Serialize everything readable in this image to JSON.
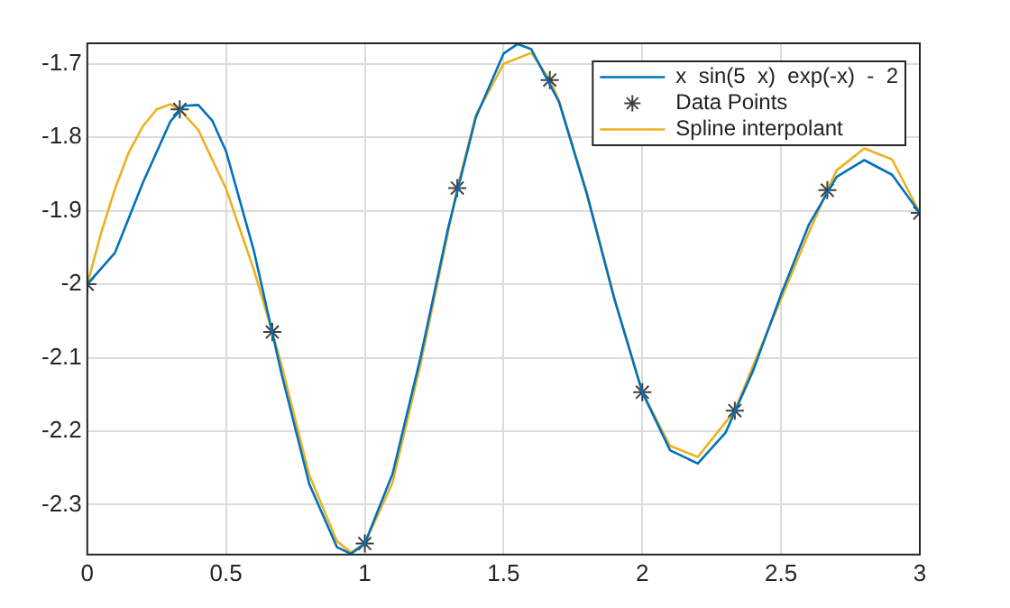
{
  "chart_data": {
    "type": "line",
    "xlim": [
      0,
      3
    ],
    "ylim": [
      -2.368,
      -1.672
    ],
    "xticks": [
      0,
      0.5,
      1,
      1.5,
      2,
      2.5,
      3
    ],
    "yticks": [
      -2.3,
      -2.2,
      -2.1,
      -2,
      -1.9,
      -1.8,
      -1.7
    ],
    "grid": true,
    "legend": "top right",
    "series": [
      {
        "name": "x  sin(5  x)  exp(-x)  -  2",
        "marker": "none",
        "color": "#0072bd",
        "x": [
          0,
          0.1,
          0.2,
          0.3,
          0.35,
          0.4,
          0.45,
          0.5,
          0.6,
          0.7,
          0.8,
          0.9,
          0.95,
          1,
          1.1,
          1.2,
          1.3,
          1.4,
          1.5,
          1.55,
          1.6,
          1.7,
          1.8,
          1.9,
          2,
          2.1,
          2.2,
          2.3,
          2.4,
          2.5,
          2.6,
          2.7,
          2.8,
          2.9,
          3
        ],
        "values": [
          -2,
          -1.957,
          -1.862,
          -1.778,
          -1.757,
          -1.756,
          -1.777,
          -1.819,
          -1.954,
          -2.122,
          -2.272,
          -2.358,
          -2.367,
          -2.353,
          -2.258,
          -2.101,
          -1.924,
          -1.773,
          -1.686,
          -1.673,
          -1.68,
          -1.752,
          -1.877,
          -2.021,
          -2.147,
          -2.226,
          -2.244,
          -2.202,
          -2.117,
          -2.014,
          -1.919,
          -1.854,
          -1.831,
          -1.851,
          -1.903
        ]
      },
      {
        "name": "Data Points",
        "type": "scatter",
        "marker": "cross",
        "color": "#404040",
        "x": [
          0,
          0.3333,
          0.6667,
          1,
          1.3333,
          1.6667,
          2,
          2.3333,
          2.6667,
          3
        ],
        "values": [
          -2,
          -1.762,
          -2.065,
          -2.353,
          -1.869,
          -1.722,
          -2.147,
          -2.172,
          -1.872,
          -1.903
        ]
      },
      {
        "name": "Spline interpolant",
        "marker": "none",
        "color": "#edb120",
        "x": [
          0,
          0.05,
          0.1,
          0.15,
          0.2,
          0.25,
          0.3,
          0.3333,
          0.4,
          0.5,
          0.6,
          0.6667,
          0.7,
          0.8,
          0.9,
          0.95,
          1,
          1.1,
          1.2,
          1.3333,
          1.4,
          1.5,
          1.6,
          1.6667,
          1.7,
          1.8,
          1.9,
          2,
          2.1,
          2.2,
          2.3333,
          2.4,
          2.5,
          2.6,
          2.6667,
          2.7,
          2.8,
          2.9,
          3
        ],
        "values": [
          -2,
          -1.93,
          -1.87,
          -1.82,
          -1.785,
          -1.762,
          -1.755,
          -1.762,
          -1.79,
          -1.87,
          -1.98,
          -2.065,
          -2.11,
          -2.26,
          -2.35,
          -2.365,
          -2.353,
          -2.27,
          -2.11,
          -1.869,
          -1.77,
          -1.7,
          -1.685,
          -1.722,
          -1.75,
          -1.875,
          -2.02,
          -2.147,
          -2.22,
          -2.235,
          -2.172,
          -2.11,
          -2.02,
          -1.93,
          -1.872,
          -1.845,
          -1.815,
          -1.83,
          -1.903
        ]
      }
    ]
  }
}
